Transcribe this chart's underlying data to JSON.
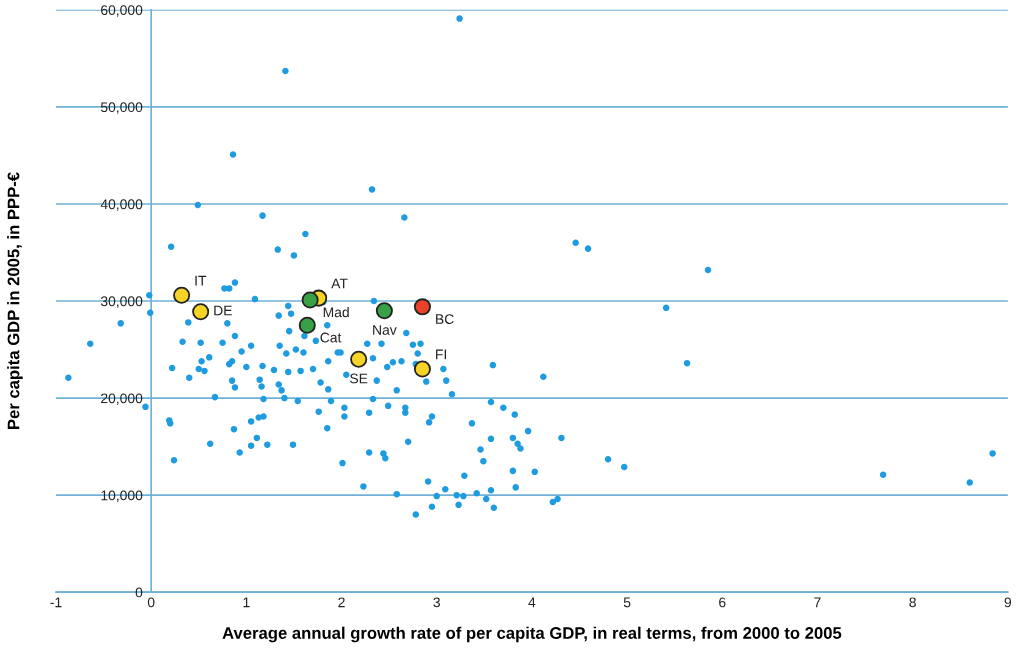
{
  "chart_data": {
    "type": "scatter",
    "xlabel": "Average annual growth rate of per capita GDP, in real terms, from 2000 to 2005",
    "ylabel": "Per capita GDP in 2005, in PPP-€",
    "xlim": [
      -1,
      9
    ],
    "ylim": [
      0,
      60000
    ],
    "xticks": [
      -1,
      0,
      1,
      2,
      3,
      4,
      5,
      6,
      7,
      8,
      9
    ],
    "yticks": [
      0,
      {
        "value": 10000,
        "label": "10,000"
      },
      {
        "value": 20000,
        "label": "20,000"
      },
      {
        "value": 30000,
        "label": "30,000"
      },
      {
        "value": 40000,
        "label": "40,000"
      },
      {
        "value": 50000,
        "label": "50,000"
      },
      {
        "value": 60000,
        "label": "60,000"
      }
    ],
    "grid": "y",
    "marker": "circle",
    "series": [
      {
        "color": "#1f9be0",
        "x": [
          3.24,
          1.41,
          0.86,
          2.32,
          0.49,
          1.17,
          2.66,
          1.62,
          0.21,
          1.33,
          1.5,
          4.46,
          4.59,
          5.85,
          5.41,
          5.63,
          -0.02,
          -0.01,
          -0.32,
          -0.64,
          -0.87,
          -0.06,
          0.88,
          0.77,
          0.82,
          1.09,
          1.44,
          1.47,
          1.34,
          1.81,
          0.39,
          0.8,
          1.45,
          1.85,
          0.88,
          0.33,
          0.52,
          0.75,
          1.05,
          1.35,
          1.61,
          1.73,
          0.95,
          1.42,
          1.52,
          1.6,
          1.96,
          0.61,
          0.53,
          0.85,
          0.82,
          1.86,
          0.22,
          0.5,
          0.56,
          1.0,
          1.17,
          1.29,
          1.44,
          1.57,
          1.7,
          0.4,
          0.85,
          1.14,
          0.88,
          1.16,
          1.34,
          1.37,
          1.78,
          1.86,
          0.67,
          1.18,
          1.4,
          1.54,
          1.89,
          1.76,
          0.19,
          0.2,
          1.05,
          1.13,
          1.18,
          0.87,
          1.85,
          1.11,
          0.62,
          1.05,
          1.22,
          1.49,
          0.93,
          0.24,
          2.34,
          2.68,
          2.27,
          2.42,
          2.75,
          2.83,
          1.99,
          2.8,
          2.33,
          2.54,
          2.63,
          2.48,
          2.78,
          3.07,
          3.59,
          4.12,
          2.05,
          2.37,
          2.89,
          3.1,
          2.58,
          3.16,
          2.33,
          3.57,
          3.7,
          2.03,
          2.03,
          2.29,
          2.49,
          2.67,
          2.67,
          2.95,
          2.92,
          3.82,
          3.37,
          3.96,
          4.31,
          2.7,
          3.57,
          3.8,
          3.85,
          3.88,
          3.46,
          2.29,
          2.44,
          2.46,
          3.49,
          2.01,
          4.8,
          4.97,
          3.8,
          4.03,
          3.29,
          2.91,
          2.23,
          2.58,
          3.0,
          3.09,
          3.21,
          3.28,
          3.42,
          3.57,
          3.83,
          3.52,
          4.22,
          4.27,
          2.95,
          3.23,
          3.6,
          2.78,
          7.69,
          8.6,
          8.84
        ],
        "values": [
          59100,
          53700,
          45100,
          41500,
          39900,
          38800,
          38600,
          36900,
          35600,
          35300,
          34700,
          36000,
          35400,
          33200,
          29300,
          23600,
          30600,
          28800,
          27700,
          25600,
          22100,
          19100,
          31900,
          31300,
          31300,
          30200,
          29500,
          28700,
          28500,
          29900,
          27800,
          27700,
          26900,
          27500,
          26400,
          25800,
          25700,
          25700,
          25400,
          25400,
          26400,
          25900,
          24800,
          24600,
          25000,
          24700,
          24700,
          24200,
          23800,
          23800,
          23500,
          23800,
          23100,
          23000,
          22800,
          23200,
          23300,
          22900,
          22700,
          22800,
          23000,
          22100,
          21800,
          21900,
          21100,
          21200,
          21400,
          20800,
          21600,
          20900,
          20100,
          19900,
          20000,
          19700,
          19700,
          18600,
          17700,
          17400,
          17600,
          18000,
          18100,
          16800,
          16900,
          15900,
          15300,
          15100,
          15200,
          15200,
          14400,
          13600,
          30000,
          26700,
          25600,
          25600,
          25500,
          25600,
          24700,
          24600,
          24100,
          23700,
          23800,
          23200,
          23500,
          23000,
          23400,
          22200,
          22400,
          21800,
          21700,
          21800,
          20800,
          20400,
          19900,
          19600,
          19000,
          19000,
          18100,
          18500,
          19200,
          19000,
          18500,
          18100,
          17500,
          18300,
          17400,
          16600,
          15900,
          15500,
          15800,
          15900,
          15300,
          14800,
          14700,
          14400,
          14300,
          13800,
          13500,
          13300,
          13700,
          12900,
          12500,
          12400,
          12000,
          11400,
          10900,
          10100,
          9900,
          10600,
          10000,
          9900,
          10200,
          10500,
          10800,
          9600,
          9300,
          9600,
          8800,
          9000,
          8700,
          8000,
          12100,
          11300,
          14300
        ]
      },
      {
        "color": "#f5d327",
        "x": [
          0.32,
          0.52,
          1.76,
          2.18,
          2.85
        ],
        "values": [
          30600,
          28900,
          30300,
          24000,
          23000
        ]
      },
      {
        "color": "#3aa047",
        "x": [
          1.67,
          1.64,
          2.45
        ],
        "values": [
          30100,
          27500,
          29000
        ]
      },
      {
        "color": "#e8432a",
        "x": [
          2.85
        ],
        "values": [
          29400
        ]
      }
    ],
    "annotations": [
      {
        "text": "IT",
        "x": 0.32,
        "y": 30600
      },
      {
        "text": "DE",
        "x": 0.52,
        "y": 28900
      },
      {
        "text": "Mad",
        "x": 1.67,
        "y": 30100
      },
      {
        "text": "AT",
        "x": 1.76,
        "y": 30300
      },
      {
        "text": "Cat",
        "x": 1.64,
        "y": 27500
      },
      {
        "text": "Nav",
        "x": 2.45,
        "y": 29000
      },
      {
        "text": "BC",
        "x": 2.85,
        "y": 29400
      },
      {
        "text": "SE",
        "x": 2.18,
        "y": 24000
      },
      {
        "text": "FI",
        "x": 2.85,
        "y": 23000
      }
    ]
  }
}
